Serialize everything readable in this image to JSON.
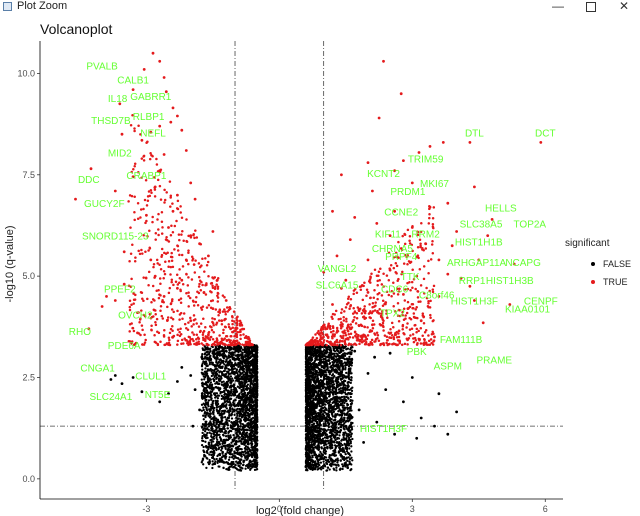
{
  "window": {
    "title": "Plot Zoom",
    "minimize_glyph": "—",
    "close_glyph": "✕",
    "icon": "chart-window-icon"
  },
  "chart_data": {
    "type": "scatter",
    "title": "Volcanoplot",
    "xlabel": "log2 (fold change)",
    "ylabel": "-log10 (q-value)",
    "xlim": [
      -5.4,
      6.4
    ],
    "ylim": [
      -0.3,
      10.8
    ],
    "x_ticks": [
      -3,
      0,
      3,
      6
    ],
    "y_ticks": [
      0.0,
      2.5,
      5.0,
      7.5,
      10.0
    ],
    "x_tick_labels": [
      "-3",
      "0",
      "3",
      "6"
    ],
    "y_tick_labels": [
      "0.0",
      "2.5",
      "5.0",
      "7.5",
      "10.0"
    ],
    "thresholds": {
      "x": [
        -1,
        1
      ],
      "y": 1.3
    },
    "grid": false,
    "legend": {
      "title": "significant",
      "position": "right",
      "entries": [
        {
          "label": "FALSE",
          "color": "#000000"
        },
        {
          "label": "TRUE",
          "color": "#e41a1c"
        }
      ]
    },
    "colors": {
      "false": "#000000",
      "true": "#e41a1c",
      "labels": "#66ff33"
    },
    "series": [
      {
        "name": "TRUE",
        "points": [
          [
            -4.6,
            6.9
          ],
          [
            -4.25,
            7.65
          ],
          [
            -3.5,
            4.8
          ],
          [
            -3.6,
            9.25
          ],
          [
            -3.55,
            8.5
          ],
          [
            -3.3,
            9.6
          ],
          [
            -3.05,
            10.1
          ],
          [
            -2.85,
            10.5
          ],
          [
            -2.7,
            10.3
          ],
          [
            -2.6,
            9.9
          ],
          [
            -2.55,
            9.55
          ],
          [
            -2.4,
            9.15
          ],
          [
            -2.3,
            8.95
          ],
          [
            -2.2,
            8.6
          ],
          [
            -2.45,
            8.8
          ],
          [
            -2.7,
            8.7
          ],
          [
            -2.9,
            8.55
          ],
          [
            -3.1,
            8.35
          ],
          [
            -2.6,
            8.0
          ],
          [
            -2.1,
            8.1
          ],
          [
            -3.3,
            7.45
          ],
          [
            -3.7,
            7.1
          ],
          [
            -2.7,
            7.6
          ],
          [
            -2.3,
            7.0
          ],
          [
            -2.0,
            7.3
          ],
          [
            -1.9,
            6.9
          ],
          [
            -3.0,
            6.5
          ],
          [
            -2.5,
            6.2
          ],
          [
            -2.0,
            6.0
          ],
          [
            -1.8,
            5.8
          ],
          [
            -3.5,
            5.6
          ],
          [
            -2.9,
            5.4
          ],
          [
            -1.6,
            5.5
          ],
          [
            -2.2,
            4.9
          ],
          [
            -1.4,
            4.9
          ],
          [
            -3.9,
            4.5
          ],
          [
            -2.6,
            4.5
          ],
          [
            -1.5,
            4.2
          ],
          [
            -2.0,
            3.9
          ],
          [
            -1.3,
            3.9
          ],
          [
            -3.2,
            3.6
          ],
          [
            -2.4,
            3.5
          ],
          [
            -1.6,
            3.55
          ],
          [
            -4.3,
            3.7
          ],
          [
            -3.7,
            4.4
          ],
          [
            -1.2,
            4.4
          ],
          [
            -1.1,
            3.7
          ],
          [
            -1.7,
            4.6
          ],
          [
            -2.8,
            5.0
          ],
          [
            -2.1,
            5.4
          ],
          [
            -1.5,
            6.1
          ],
          [
            -2.4,
            6.6
          ],
          [
            -2.8,
            7.2
          ],
          [
            -3.2,
            4.1
          ],
          [
            -4.0,
            4.25
          ],
          [
            -2.3,
            4.7
          ],
          [
            2.35,
            10.3
          ],
          [
            2.75,
            9.5
          ],
          [
            2.25,
            8.9
          ],
          [
            3.7,
            8.3
          ],
          [
            4.3,
            8.3
          ],
          [
            5.9,
            8.3
          ],
          [
            3.15,
            8.05
          ],
          [
            3.4,
            8.2
          ],
          [
            2.0,
            7.8
          ],
          [
            2.6,
            7.6
          ],
          [
            3.0,
            7.3
          ],
          [
            4.4,
            7.2
          ],
          [
            1.4,
            7.5
          ],
          [
            2.1,
            7.1
          ],
          [
            3.8,
            6.8
          ],
          [
            2.6,
            6.6
          ],
          [
            1.2,
            6.6
          ],
          [
            4.8,
            6.4
          ],
          [
            3.0,
            6.2
          ],
          [
            4.0,
            6.1
          ],
          [
            2.5,
            6.0
          ],
          [
            4.7,
            6.0
          ],
          [
            1.6,
            5.9
          ],
          [
            3.3,
            5.8
          ],
          [
            3.9,
            5.75
          ],
          [
            1.3,
            5.5
          ],
          [
            2.0,
            5.4
          ],
          [
            3.6,
            5.4
          ],
          [
            4.5,
            5.4
          ],
          [
            5.3,
            5.3
          ],
          [
            2.5,
            5.15
          ],
          [
            3.1,
            5.0
          ],
          [
            4.1,
            4.95
          ],
          [
            1.5,
            4.9
          ],
          [
            2.0,
            4.6
          ],
          [
            2.8,
            4.55
          ],
          [
            3.6,
            4.5
          ],
          [
            4.4,
            4.4
          ],
          [
            5.2,
            4.3
          ],
          [
            1.2,
            4.3
          ],
          [
            2.3,
            4.0
          ],
          [
            3.2,
            3.9
          ],
          [
            4.6,
            3.85
          ],
          [
            1.6,
            3.7
          ],
          [
            2.7,
            3.65
          ],
          [
            3.5,
            3.5
          ],
          [
            1.1,
            3.5
          ],
          [
            1.8,
            4.15
          ],
          [
            2.1,
            3.8
          ],
          [
            1.4,
            4.7
          ],
          [
            2.9,
            4.2
          ],
          [
            3.8,
            5.05
          ],
          [
            2.2,
            6.3
          ],
          [
            1.0,
            5.1
          ],
          [
            1.7,
            6.45
          ],
          [
            3.4,
            6.7
          ],
          [
            2.8,
            7.85
          ],
          [
            4.3,
            4.75
          ],
          [
            1.9,
            3.55
          ],
          [
            2.4,
            4.35
          ]
        ]
      },
      {
        "name": "FALSE",
        "points": [
          [
            -3.8,
            2.45
          ],
          [
            -3.7,
            2.55
          ],
          [
            -3.3,
            2.5
          ],
          [
            -3.1,
            2.15
          ],
          [
            -2.5,
            2.1
          ],
          [
            -2.2,
            2.75
          ],
          [
            -2.0,
            2.55
          ],
          [
            -1.9,
            2.2
          ],
          [
            -1.8,
            1.7
          ],
          [
            -1.6,
            2.4
          ],
          [
            -1.5,
            3.1
          ],
          [
            -1.4,
            1.9
          ],
          [
            -1.3,
            2.9
          ],
          [
            -1.2,
            2.3
          ],
          [
            -1.15,
            1.5
          ],
          [
            -1.1,
            3.2
          ],
          [
            -1.05,
            2.7
          ],
          [
            -0.95,
            1.2
          ],
          [
            -0.9,
            2.0
          ],
          [
            -0.85,
            3.0
          ],
          [
            -0.8,
            0.9
          ],
          [
            -0.75,
            2.45
          ],
          [
            -0.7,
            1.7
          ],
          [
            -0.65,
            3.3
          ],
          [
            -0.62,
            0.6
          ],
          [
            -0.6,
            2.8
          ],
          [
            -0.58,
            1.3
          ],
          [
            -0.56,
            2.2
          ],
          [
            -0.55,
            0.4
          ],
          [
            -0.6,
            1.9
          ],
          [
            -1.25,
            0.95
          ],
          [
            -1.4,
            1.4
          ],
          [
            -1.0,
            0.55
          ],
          [
            -0.7,
            0.3
          ],
          [
            -2.7,
            1.9
          ],
          [
            -3.55,
            2.35
          ],
          [
            -1.75,
            3.0
          ],
          [
            -2.3,
            2.4
          ],
          [
            -1.95,
            1.3
          ],
          [
            -1.65,
            0.8
          ],
          [
            -0.98,
            2.95
          ],
          [
            -1.55,
            2.7
          ],
          [
            -1.35,
            3.25
          ],
          [
            -0.88,
            1.65
          ],
          [
            -0.77,
            0.75
          ],
          [
            0.6,
            0.3
          ],
          [
            0.62,
            1.4
          ],
          [
            0.65,
            2.9
          ],
          [
            0.7,
            0.8
          ],
          [
            0.72,
            2.2
          ],
          [
            0.8,
            3.2
          ],
          [
            0.85,
            1.0
          ],
          [
            0.9,
            1.9
          ],
          [
            0.95,
            2.6
          ],
          [
            1.0,
            0.5
          ],
          [
            1.05,
            3.3
          ],
          [
            1.1,
            1.6
          ],
          [
            1.2,
            2.4
          ],
          [
            1.3,
            0.9
          ],
          [
            1.4,
            2.9
          ],
          [
            1.5,
            1.3
          ],
          [
            1.6,
            2.1
          ],
          [
            1.7,
            3.15
          ],
          [
            1.8,
            1.7
          ],
          [
            2.0,
            2.6
          ],
          [
            2.2,
            1.4
          ],
          [
            2.4,
            2.2
          ],
          [
            2.6,
            1.1
          ],
          [
            2.8,
            1.9
          ],
          [
            3.0,
            2.5
          ],
          [
            3.2,
            1.5
          ],
          [
            3.5,
            1.3
          ],
          [
            3.8,
            1.1
          ],
          [
            4.0,
            1.65
          ],
          [
            1.15,
            0.35
          ],
          [
            0.75,
            1.6
          ],
          [
            0.68,
            0.55
          ],
          [
            1.35,
            2.0
          ],
          [
            0.92,
            3.0
          ],
          [
            1.45,
            0.7
          ],
          [
            2.15,
            3.0
          ],
          [
            2.5,
            3.1
          ],
          [
            1.9,
            0.9
          ],
          [
            3.1,
            1.0
          ],
          [
            3.6,
            2.1
          ]
        ]
      }
    ],
    "dense_clusters": [
      {
        "significant": false,
        "x_range": [
          -1.75,
          -0.5
        ],
        "y_range": [
          0.2,
          3.3
        ]
      },
      {
        "significant": false,
        "x_range": [
          0.6,
          1.65
        ],
        "y_range": [
          0.2,
          3.3
        ]
      }
    ],
    "labels": [
      {
        "text": "PVALB",
        "x": -4.0,
        "y": 10.1
      },
      {
        "text": "CALB1",
        "x": -3.3,
        "y": 9.75
      },
      {
        "text": "GABRR1",
        "x": -2.9,
        "y": 9.35
      },
      {
        "text": "IL18",
        "x": -3.65,
        "y": 9.3
      },
      {
        "text": "RLBP1",
        "x": -2.95,
        "y": 8.85
      },
      {
        "text": "THSD7B",
        "x": -3.8,
        "y": 8.75
      },
      {
        "text": "NEFL",
        "x": -2.85,
        "y": 8.45
      },
      {
        "text": "MID2",
        "x": -3.6,
        "y": 7.95
      },
      {
        "text": "CRABP1",
        "x": -3.0,
        "y": 7.4
      },
      {
        "text": "DDC",
        "x": -4.3,
        "y": 7.3
      },
      {
        "text": "GUCY2F",
        "x": -3.95,
        "y": 6.7
      },
      {
        "text": "SNORD115-23",
        "x": -3.7,
        "y": 5.9
      },
      {
        "text": "PPEF2",
        "x": -3.6,
        "y": 4.6
      },
      {
        "text": "OVCH2",
        "x": -3.25,
        "y": 3.95
      },
      {
        "text": "RHO",
        "x": -4.5,
        "y": 3.55
      },
      {
        "text": "PDE6A",
        "x": -3.5,
        "y": 3.2
      },
      {
        "text": "CNGA1",
        "x": -4.1,
        "y": 2.65
      },
      {
        "text": "CLUL1",
        "x": -2.9,
        "y": 2.45
      },
      {
        "text": "SLC24A1",
        "x": -3.8,
        "y": 1.95
      },
      {
        "text": "NT5E",
        "x": -2.75,
        "y": 2.0
      },
      {
        "text": "DTL",
        "x": 4.4,
        "y": 8.45
      },
      {
        "text": "DCT",
        "x": 6.0,
        "y": 8.45
      },
      {
        "text": "TRIM59",
        "x": 3.3,
        "y": 7.8
      },
      {
        "text": "KCNT2",
        "x": 2.35,
        "y": 7.45
      },
      {
        "text": "MKI67",
        "x": 3.5,
        "y": 7.2
      },
      {
        "text": "PRDM1",
        "x": 2.9,
        "y": 7.0
      },
      {
        "text": "HELLS",
        "x": 5.0,
        "y": 6.6
      },
      {
        "text": "CCNE2",
        "x": 2.75,
        "y": 6.5
      },
      {
        "text": "SLC38A5",
        "x": 4.55,
        "y": 6.2
      },
      {
        "text": "TOP2A",
        "x": 5.65,
        "y": 6.2
      },
      {
        "text": "KIF11",
        "x": 2.45,
        "y": 5.95
      },
      {
        "text": "RRM2",
        "x": 3.3,
        "y": 5.95
      },
      {
        "text": "HIST1H1B",
        "x": 4.5,
        "y": 5.75
      },
      {
        "text": "CHRNA5",
        "x": 2.55,
        "y": 5.6
      },
      {
        "text": "NCAPG",
        "x": 5.5,
        "y": 5.25
      },
      {
        "text": "ARHGAP11A",
        "x": 4.45,
        "y": 5.25
      },
      {
        "text": "VANGL2",
        "x": 1.3,
        "y": 5.1
      },
      {
        "text": "SLC6A15",
        "x": 1.3,
        "y": 4.7
      },
      {
        "text": "TTK",
        "x": 2.95,
        "y": 4.9
      },
      {
        "text": "PRPF4",
        "x": 2.75,
        "y": 5.4
      },
      {
        "text": "RRP1",
        "x": 4.35,
        "y": 4.8
      },
      {
        "text": "HIST1H3B",
        "x": 5.2,
        "y": 4.8
      },
      {
        "text": "CDC6",
        "x": 2.6,
        "y": 4.6
      },
      {
        "text": "C8orf46",
        "x": 3.55,
        "y": 4.45
      },
      {
        "text": "HIST1H3F",
        "x": 4.4,
        "y": 4.3
      },
      {
        "text": "CENPF",
        "x": 5.9,
        "y": 4.3
      },
      {
        "text": "KIAA0101",
        "x": 5.6,
        "y": 4.1
      },
      {
        "text": "TPX2",
        "x": 2.55,
        "y": 4.0
      },
      {
        "text": "FAM111B",
        "x": 4.1,
        "y": 3.35
      },
      {
        "text": "PBK",
        "x": 3.1,
        "y": 3.05
      },
      {
        "text": "PRAME",
        "x": 4.85,
        "y": 2.85
      },
      {
        "text": "ASPM",
        "x": 3.8,
        "y": 2.7
      },
      {
        "text": "HIST1H3F",
        "x": 2.35,
        "y": 1.15
      }
    ]
  }
}
